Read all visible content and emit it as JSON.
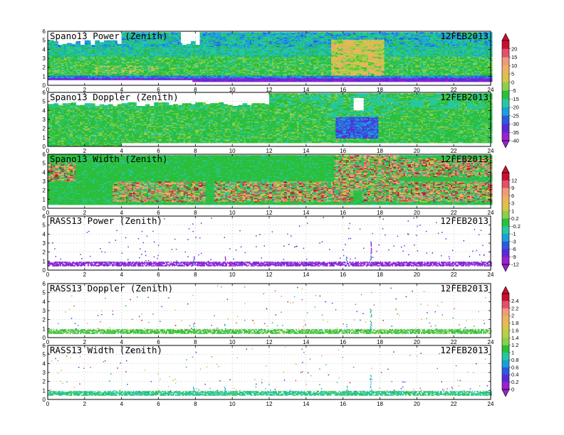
{
  "panels": [
    {
      "title": "Spano13 Power (Zenith)",
      "date": "12FEB2013",
      "field": "spano_power"
    },
    {
      "title": "Spano13 Doppler (Zenith)",
      "date": "12FEB2013",
      "field": "spano_doppler"
    },
    {
      "title": "Spano13 Width (Zenith)",
      "date": "12FEB2013",
      "field": "spano_width"
    },
    {
      "title": "RASS13 Power (Zenith)",
      "date": "12FEB2013",
      "field": "rass_power"
    },
    {
      "title": "RASS13 Doppler (Zenith)",
      "date": "12FEB2013",
      "field": "rass_doppler"
    },
    {
      "title": "RASS13 Width (Zenith)",
      "date": "12FEB2013",
      "field": "rass_width"
    }
  ],
  "chart_data": {
    "type": "heatmap",
    "x": {
      "ticks": [
        0,
        2,
        4,
        6,
        8,
        10,
        12,
        14,
        16,
        18,
        20,
        22,
        24
      ],
      "range": [
        0,
        24
      ]
    },
    "y": {
      "ticks": [
        0,
        1,
        2,
        3,
        4,
        5,
        6
      ],
      "range": [
        0,
        6
      ]
    },
    "grid": true,
    "colorbars": [
      {
        "labels": [
          "20",
          "15",
          "10",
          "5",
          "0",
          "-5",
          "-15",
          "-20",
          "-25",
          "-30",
          "-35",
          "-40"
        ],
        "colors": [
          "#c8102e",
          "#e4506a",
          "#f09a7a",
          "#ecb35c",
          "#d9c34a",
          "#8bd04a",
          "#2bbf3a",
          "#25c8a0",
          "#1aa0d8",
          "#2a5ae0",
          "#5a2ad8",
          "#9a20d0"
        ]
      },
      {
        "labels": [
          "12",
          "9",
          "6",
          "3",
          "1",
          "0.2",
          "-0.2",
          "-1",
          "-3",
          "-6",
          "-9",
          "-12"
        ],
        "colors": [
          "#c8102e",
          "#e4506a",
          "#f09a7a",
          "#ecb35c",
          "#d9c34a",
          "#8bd04a",
          "#2bbf3a",
          "#25c8a0",
          "#1aa0d8",
          "#2a5ae0",
          "#5a2ad8",
          "#9a20d0"
        ]
      },
      {
        "labels": [
          "2.4",
          "2.2",
          "2",
          "1.8",
          "1.6",
          "1.4",
          "1.2",
          "1",
          "0.8",
          "0.6",
          "0.4",
          "0.2",
          "0"
        ],
        "colors": [
          "#c8102e",
          "#e4506a",
          "#f09a7a",
          "#ecb35c",
          "#d9c34a",
          "#b8cf48",
          "#8bd04a",
          "#2bbf3a",
          "#25c8a0",
          "#1aa0d8",
          "#2a5ae0",
          "#5a2ad8",
          "#9a20d0"
        ]
      }
    ],
    "series": [
      {
        "field": "spano_power",
        "colorbar": 0,
        "coverage_km": [
          0,
          5.8
        ],
        "dominant": "green/cyan",
        "bottom_band": "purple/blue near 0.5 km",
        "notes": "yellow/orange patches near hour 16-18"
      },
      {
        "field": "spano_doppler",
        "colorbar": 0,
        "coverage_km": [
          0,
          5.8
        ],
        "dominant": "green",
        "notes": "blue/cyan patches near hour 16-18, 1-3 km"
      },
      {
        "field": "spano_width",
        "colorbar": 1,
        "coverage_km": [
          0.5,
          5.8
        ],
        "dominant": "green with red/orange/yellow speckle below 3 km"
      },
      {
        "field": "rass_power",
        "colorbar": 1,
        "coverage_km": [
          0.3,
          1.0
        ],
        "dominant": "purple band near 0.6 km",
        "notes": "sparse points above, spikes near hour 8 and 17.5"
      },
      {
        "field": "rass_doppler",
        "colorbar": 2,
        "coverage_km": [
          0.3,
          1.0
        ],
        "dominant": "green band near 0.6 km",
        "notes": "sparse points above"
      },
      {
        "field": "rass_width",
        "colorbar": 2,
        "coverage_km": [
          0.3,
          1.0
        ],
        "dominant": "cyan/green band near 0.6 km",
        "notes": "sparse points above"
      }
    ]
  }
}
